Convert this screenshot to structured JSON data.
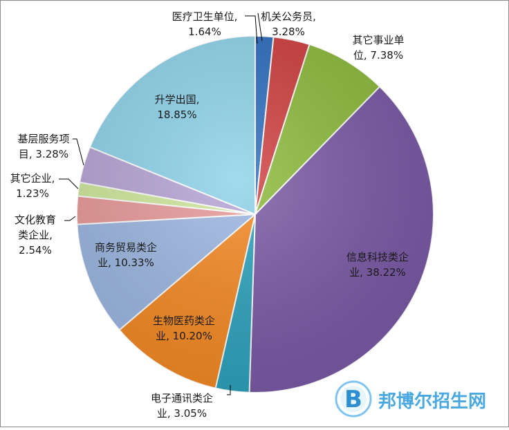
{
  "chart_data": {
    "type": "pie",
    "title": "",
    "start_angle_deg": 0,
    "direction": "clockwise",
    "slices": [
      {
        "lines": [
          "医疗卫生单位,",
          "1.64%"
        ],
        "name": "医疗卫生单位",
        "value": 1.64,
        "color": "#2f6fbf"
      },
      {
        "lines": [
          "机关公务员,",
          "3.28%"
        ],
        "name": "机关公务员",
        "value": 3.28,
        "color": "#d04040"
      },
      {
        "lines": [
          "其它事业单",
          "位, 7.38%"
        ],
        "name": "其它事业单位",
        "value": 7.38,
        "color": "#8dbb3c"
      },
      {
        "lines": [
          "信息科技类企",
          "业, 38.22%"
        ],
        "name": "信息科技类企业",
        "value": 38.22,
        "color": "#7b5aa6"
      },
      {
        "lines": [
          "电子通讯类企",
          "业, 3.05%"
        ],
        "name": "电子通讯类企业",
        "value": 3.05,
        "color": "#2ea3bd"
      },
      {
        "lines": [
          "生物医药类企",
          "业, 10.20%"
        ],
        "name": "生物医药类企业",
        "value": 10.2,
        "color": "#f58a24"
      },
      {
        "lines": [
          "商务贸易类企",
          "业, 10.33%"
        ],
        "name": "商务贸易类企业",
        "value": 10.33,
        "color": "#9db7e2"
      },
      {
        "lines": [
          "文化教育",
          "类企业,",
          "2.54%"
        ],
        "name": "文化教育类企业",
        "value": 2.54,
        "color": "#e99a9a"
      },
      {
        "lines": [
          "其它企业,",
          "1.23%"
        ],
        "name": "其它企业",
        "value": 1.23,
        "color": "#cfe89c"
      },
      {
        "lines": [
          "基层服务项",
          "目, 3.28%"
        ],
        "name": "基层服务项目",
        "value": 3.28,
        "color": "#b7a5d6"
      },
      {
        "lines": [
          "升学出国,",
          "18.85%"
        ],
        "name": "升学出国",
        "value": 18.85,
        "color": "#8fd3ea"
      }
    ]
  },
  "watermark": {
    "logo_letter": "B",
    "text": "邦博尔招生网"
  }
}
